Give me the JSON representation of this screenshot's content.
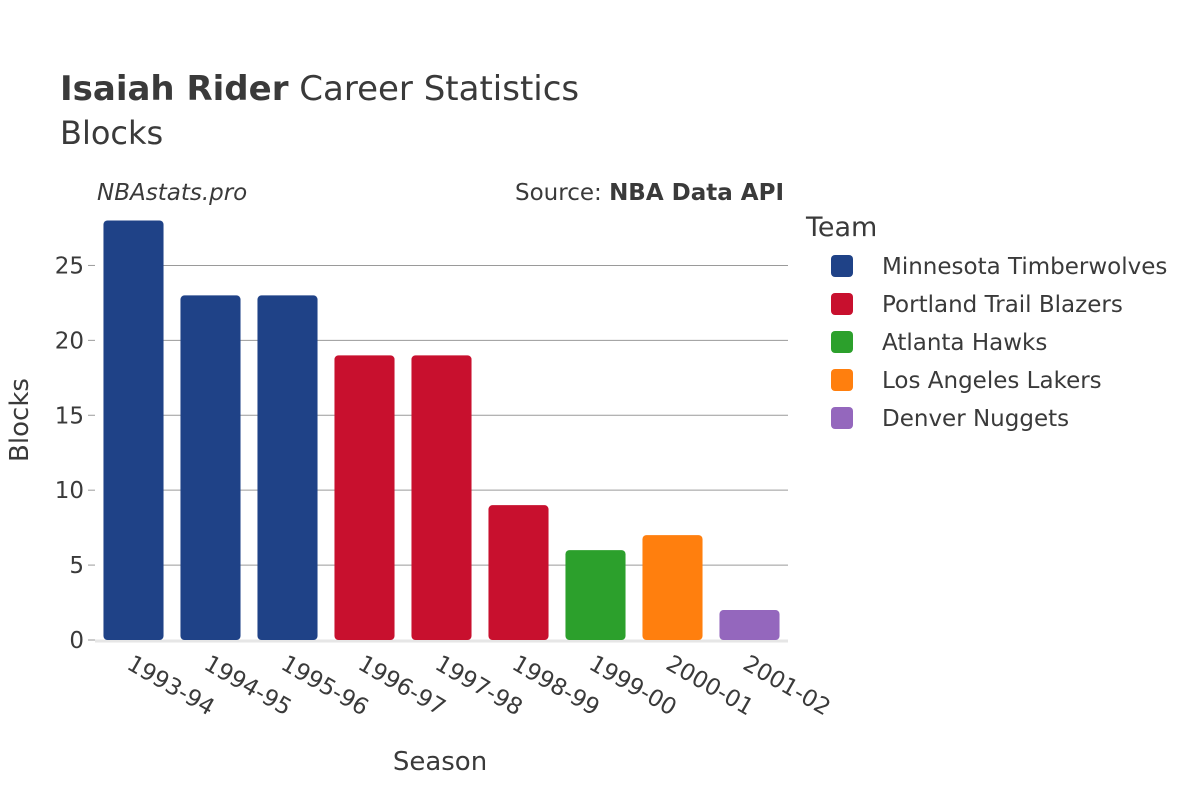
{
  "header": {
    "title_bold": "Isaiah Rider",
    "title_rest": " Career Statistics",
    "subtitle": "Blocks",
    "watermark": "NBAstats.pro",
    "source_prefix": "Source: ",
    "source_name": "NBA Data API"
  },
  "legend": {
    "title": "Team",
    "items": [
      {
        "label": "Minnesota Timberwolves",
        "color": "#1f4287"
      },
      {
        "label": "Portland Trail Blazers",
        "color": "#c8102e"
      },
      {
        "label": "Atlanta Hawks",
        "color": "#2ca02c"
      },
      {
        "label": "Los Angeles Lakers",
        "color": "#ff7f0e"
      },
      {
        "label": "Denver Nuggets",
        "color": "#9467bd"
      }
    ]
  },
  "chart_data": {
    "type": "bar",
    "xlabel": "Season",
    "ylabel": "Blocks",
    "ylim": [
      0,
      28.5
    ],
    "yticks": [
      0,
      5,
      10,
      15,
      20,
      25
    ],
    "grid": true,
    "legend_position": "right",
    "categories": [
      "1993-94",
      "1994-95",
      "1995-96",
      "1996-97",
      "1997-98",
      "1998-99",
      "1999-00",
      "2000-01",
      "2001-02"
    ],
    "values": [
      28,
      23,
      23,
      19,
      19,
      9,
      6,
      7,
      2
    ],
    "teams": [
      "Minnesota Timberwolves",
      "Minnesota Timberwolves",
      "Minnesota Timberwolves",
      "Portland Trail Blazers",
      "Portland Trail Blazers",
      "Portland Trail Blazers",
      "Atlanta Hawks",
      "Los Angeles Lakers",
      "Denver Nuggets"
    ]
  }
}
